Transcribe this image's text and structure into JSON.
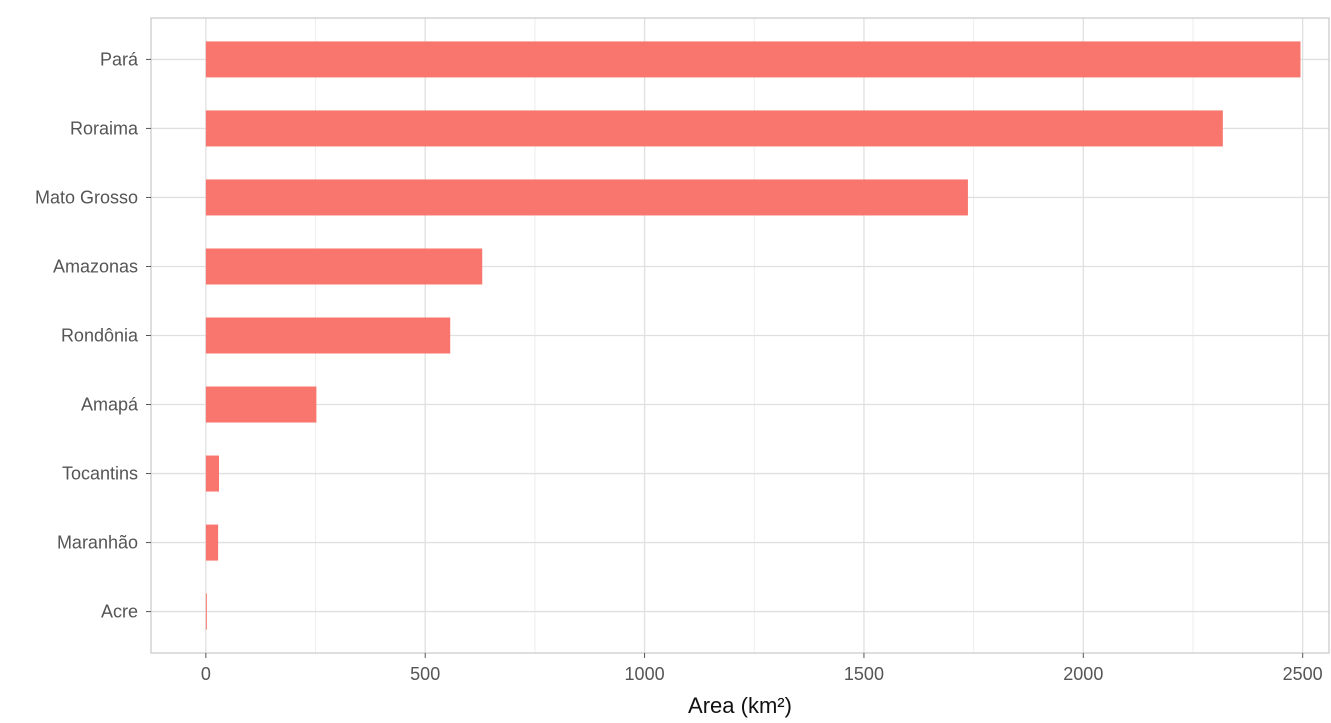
{
  "chart_data": {
    "type": "bar",
    "orientation": "horizontal",
    "categories": [
      "Pará",
      "Roraima",
      "Mato Grosso",
      "Amazonas",
      "Rondônia",
      "Amapá",
      "Tocantins",
      "Maranhão",
      "Acre"
    ],
    "values": [
      2495,
      2318,
      1737,
      630,
      557,
      252,
      30,
      28,
      2
    ],
    "xlabel": "Area (km²)",
    "ylabel": "",
    "xlim": [
      -125,
      2560
    ],
    "xticks": [
      0,
      500,
      1000,
      1500,
      2000,
      2500
    ],
    "xtick_labels": [
      "0",
      "500",
      "1000",
      "1500",
      "2000",
      "2500"
    ],
    "grid": true,
    "legend": "none",
    "bar_color": "#f8766d"
  }
}
